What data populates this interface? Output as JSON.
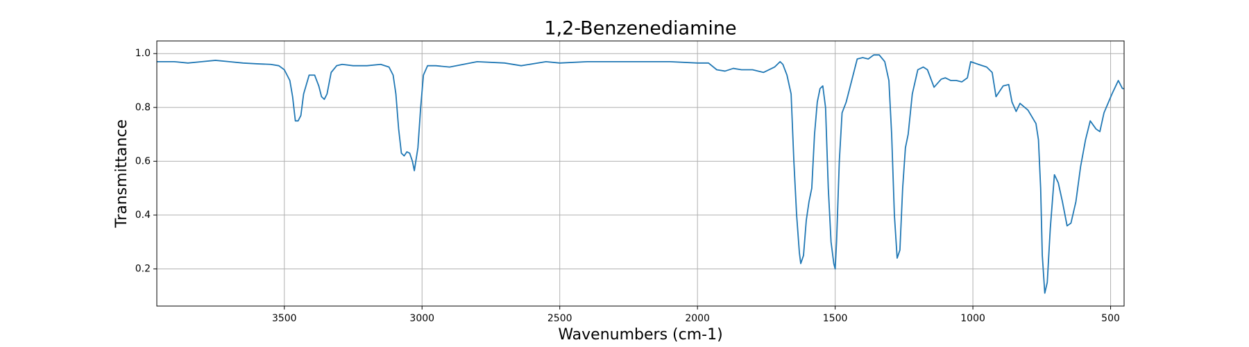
{
  "chart_data": {
    "type": "line",
    "title": "1,2-Benzenediamine",
    "xlabel": "Wavenumbers (cm-1)",
    "ylabel": "Transmittance",
    "color": "#1f77b4",
    "grid": true,
    "xlim": [
      3963,
      451
    ],
    "ylim": [
      0.062,
      1.047
    ],
    "xticks": [
      3500,
      3000,
      2500,
      2000,
      1500,
      1000,
      500
    ],
    "yticks": [
      0.2,
      0.4,
      0.6,
      0.8,
      {
        "value": 1,
        "label": "1.0"
      }
    ],
    "x": [
      3963,
      3900,
      3850,
      3800,
      3750,
      3700,
      3650,
      3600,
      3550,
      3520,
      3500,
      3480,
      3470,
      3460,
      3450,
      3440,
      3430,
      3410,
      3390,
      3375,
      3365,
      3355,
      3345,
      3330,
      3310,
      3290,
      3250,
      3200,
      3150,
      3120,
      3105,
      3095,
      3085,
      3075,
      3065,
      3055,
      3045,
      3035,
      3028,
      3015,
      3005,
      2995,
      2980,
      2950,
      2900,
      2800,
      2700,
      2640,
      2550,
      2500,
      2400,
      2300,
      2200,
      2100,
      2000,
      1960,
      1930,
      1900,
      1870,
      1840,
      1800,
      1760,
      1720,
      1700,
      1690,
      1675,
      1660,
      1650,
      1640,
      1630,
      1625,
      1615,
      1605,
      1595,
      1585,
      1575,
      1565,
      1555,
      1545,
      1535,
      1525,
      1515,
      1505,
      1500,
      1495,
      1485,
      1475,
      1460,
      1440,
      1420,
      1400,
      1380,
      1360,
      1340,
      1320,
      1305,
      1295,
      1285,
      1275,
      1265,
      1255,
      1245,
      1235,
      1220,
      1200,
      1180,
      1165,
      1141,
      1115,
      1100,
      1080,
      1060,
      1040,
      1020,
      1008,
      980,
      950,
      930,
      916,
      890,
      870,
      858,
      843,
      829,
      800,
      771,
      762,
      754,
      748,
      739,
      730,
      719,
      704,
      690,
      675,
      658,
      644,
      626,
      609,
      591,
      574,
      553,
      539,
      524,
      495,
      472,
      457,
      451
    ],
    "values": [
      0.97,
      0.97,
      0.965,
      0.97,
      0.975,
      0.97,
      0.965,
      0.962,
      0.96,
      0.955,
      0.94,
      0.9,
      0.84,
      0.75,
      0.75,
      0.77,
      0.85,
      0.92,
      0.92,
      0.88,
      0.84,
      0.83,
      0.85,
      0.93,
      0.955,
      0.96,
      0.955,
      0.955,
      0.96,
      0.95,
      0.92,
      0.85,
      0.72,
      0.63,
      0.62,
      0.635,
      0.63,
      0.6,
      0.565,
      0.65,
      0.8,
      0.92,
      0.955,
      0.955,
      0.95,
      0.97,
      0.965,
      0.955,
      0.97,
      0.965,
      0.97,
      0.97,
      0.97,
      0.97,
      0.965,
      0.965,
      0.94,
      0.935,
      0.945,
      0.94,
      0.94,
      0.93,
      0.95,
      0.97,
      0.96,
      0.92,
      0.85,
      0.6,
      0.4,
      0.26,
      0.22,
      0.25,
      0.38,
      0.45,
      0.5,
      0.7,
      0.82,
      0.87,
      0.88,
      0.8,
      0.5,
      0.3,
      0.22,
      0.2,
      0.3,
      0.6,
      0.78,
      0.82,
      0.9,
      0.98,
      0.985,
      0.98,
      0.995,
      0.995,
      0.97,
      0.9,
      0.7,
      0.4,
      0.24,
      0.27,
      0.5,
      0.65,
      0.7,
      0.85,
      0.94,
      0.95,
      0.94,
      0.875,
      0.905,
      0.91,
      0.9,
      0.9,
      0.895,
      0.91,
      0.97,
      0.96,
      0.95,
      0.93,
      0.84,
      0.88,
      0.885,
      0.82,
      0.785,
      0.815,
      0.79,
      0.74,
      0.68,
      0.5,
      0.25,
      0.11,
      0.15,
      0.35,
      0.55,
      0.52,
      0.45,
      0.36,
      0.37,
      0.45,
      0.58,
      0.68,
      0.75,
      0.72,
      0.71,
      0.78,
      0.85,
      0.9,
      0.87,
      0.87
    ]
  }
}
